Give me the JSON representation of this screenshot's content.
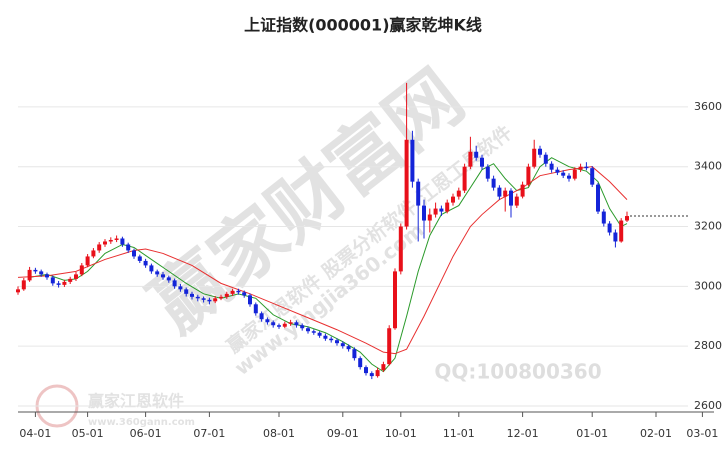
{
  "chart_data": {
    "type": "candlestick",
    "title": "上证指数(000001)赢家乾坤K线",
    "up_color": "#e8101a",
    "down_color": "#1424d8",
    "ohlc": [
      [
        2980,
        3000,
        2972,
        2990
      ],
      [
        2990,
        3028,
        2985,
        3020
      ],
      [
        3020,
        3065,
        3015,
        3055
      ],
      [
        3055,
        3062,
        3042,
        3050
      ],
      [
        3050,
        3056,
        3032,
        3040
      ],
      [
        3040,
        3046,
        3022,
        3030
      ],
      [
        3030,
        3036,
        3002,
        3010
      ],
      [
        3010,
        3018,
        2996,
        3005
      ],
      [
        3005,
        3022,
        2998,
        3015
      ],
      [
        3015,
        3032,
        3008,
        3025
      ],
      [
        3025,
        3048,
        3018,
        3040
      ],
      [
        3040,
        3078,
        3034,
        3070
      ],
      [
        3070,
        3108,
        3064,
        3100
      ],
      [
        3100,
        3128,
        3094,
        3120
      ],
      [
        3120,
        3148,
        3112,
        3140
      ],
      [
        3140,
        3158,
        3132,
        3150
      ],
      [
        3150,
        3164,
        3142,
        3155
      ],
      [
        3155,
        3170,
        3148,
        3160
      ],
      [
        3160,
        3166,
        3132,
        3140
      ],
      [
        3140,
        3146,
        3112,
        3120
      ],
      [
        3120,
        3126,
        3092,
        3100
      ],
      [
        3100,
        3106,
        3078,
        3085
      ],
      [
        3085,
        3092,
        3062,
        3070
      ],
      [
        3070,
        3076,
        3042,
        3050
      ],
      [
        3050,
        3056,
        3032,
        3040
      ],
      [
        3040,
        3048,
        3022,
        3030
      ],
      [
        3030,
        3036,
        3012,
        3020
      ],
      [
        3020,
        3026,
        2992,
        3000
      ],
      [
        3000,
        3008,
        2982,
        2990
      ],
      [
        2990,
        2996,
        2966,
        2975
      ],
      [
        2975,
        2982,
        2956,
        2965
      ],
      [
        2965,
        2972,
        2950,
        2960
      ],
      [
        2960,
        2966,
        2946,
        2955
      ],
      [
        2955,
        2962,
        2940,
        2950
      ],
      [
        2950,
        2968,
        2944,
        2960
      ],
      [
        2960,
        2972,
        2954,
        2965
      ],
      [
        2965,
        2982,
        2958,
        2975
      ],
      [
        2975,
        2992,
        2968,
        2985
      ],
      [
        2985,
        2992,
        2972,
        2980
      ],
      [
        2980,
        2986,
        2962,
        2970
      ],
      [
        2970,
        2976,
        2932,
        2940
      ],
      [
        2940,
        2946,
        2902,
        2910
      ],
      [
        2910,
        2916,
        2882,
        2890
      ],
      [
        2890,
        2896,
        2872,
        2880
      ],
      [
        2880,
        2886,
        2862,
        2870
      ],
      [
        2870,
        2876,
        2858,
        2865
      ],
      [
        2865,
        2882,
        2860,
        2875
      ],
      [
        2875,
        2888,
        2868,
        2880
      ],
      [
        2880,
        2886,
        2862,
        2870
      ],
      [
        2870,
        2876,
        2852,
        2860
      ],
      [
        2860,
        2866,
        2842,
        2850
      ],
      [
        2850,
        2856,
        2838,
        2845
      ],
      [
        2845,
        2850,
        2828,
        2835
      ],
      [
        2835,
        2842,
        2818,
        2825
      ],
      [
        2825,
        2832,
        2812,
        2820
      ],
      [
        2820,
        2826,
        2802,
        2810
      ],
      [
        2810,
        2816,
        2792,
        2800
      ],
      [
        2800,
        2806,
        2782,
        2790
      ],
      [
        2790,
        2796,
        2752,
        2760
      ],
      [
        2760,
        2766,
        2722,
        2730
      ],
      [
        2730,
        2736,
        2702,
        2710
      ],
      [
        2710,
        2716,
        2690,
        2700
      ],
      [
        2700,
        2728,
        2695,
        2720
      ],
      [
        2720,
        2748,
        2714,
        2740
      ],
      [
        2740,
        2870,
        2735,
        2860
      ],
      [
        2860,
        3060,
        2855,
        3050
      ],
      [
        3050,
        3210,
        3040,
        3200
      ],
      [
        3200,
        3680,
        3190,
        3490
      ],
      [
        3490,
        3520,
        3330,
        3350
      ],
      [
        3350,
        3360,
        3150,
        3270
      ],
      [
        3270,
        3290,
        3160,
        3220
      ],
      [
        3220,
        3260,
        3180,
        3240
      ],
      [
        3240,
        3280,
        3230,
        3260
      ],
      [
        3260,
        3270,
        3235,
        3250
      ],
      [
        3250,
        3290,
        3244,
        3280
      ],
      [
        3280,
        3310,
        3270,
        3300
      ],
      [
        3300,
        3330,
        3290,
        3320
      ],
      [
        3320,
        3410,
        3312,
        3400
      ],
      [
        3400,
        3500,
        3392,
        3450
      ],
      [
        3450,
        3470,
        3420,
        3430
      ],
      [
        3430,
        3440,
        3390,
        3400
      ],
      [
        3400,
        3408,
        3350,
        3360
      ],
      [
        3360,
        3370,
        3320,
        3330
      ],
      [
        3330,
        3338,
        3290,
        3300
      ],
      [
        3300,
        3330,
        3250,
        3320
      ],
      [
        3320,
        3328,
        3230,
        3270
      ],
      [
        3270,
        3310,
        3262,
        3300
      ],
      [
        3300,
        3350,
        3294,
        3340
      ],
      [
        3340,
        3410,
        3334,
        3400
      ],
      [
        3400,
        3490,
        3394,
        3460
      ],
      [
        3460,
        3470,
        3430,
        3440
      ],
      [
        3440,
        3448,
        3400,
        3410
      ],
      [
        3410,
        3418,
        3380,
        3390
      ],
      [
        3390,
        3398,
        3372,
        3380
      ],
      [
        3380,
        3388,
        3362,
        3370
      ],
      [
        3370,
        3378,
        3350,
        3360
      ],
      [
        3360,
        3398,
        3354,
        3390
      ],
      [
        3390,
        3410,
        3382,
        3400
      ],
      [
        3400,
        3415,
        3388,
        3395
      ],
      [
        3395,
        3402,
        3332,
        3340
      ],
      [
        3340,
        3346,
        3242,
        3250
      ],
      [
        3250,
        3258,
        3200,
        3210
      ],
      [
        3210,
        3218,
        3170,
        3180
      ],
      [
        3180,
        3190,
        3130,
        3150
      ],
      [
        3150,
        3228,
        3146,
        3220
      ],
      [
        3220,
        3250,
        3215,
        3235
      ]
    ],
    "series": [
      {
        "color": "#2a9a2a",
        "x": [
          2,
          5,
          8,
          10,
          12,
          15,
          18,
          20,
          23,
          26,
          29,
          32,
          35,
          38,
          41,
          44,
          47,
          50,
          53,
          56,
          59,
          61,
          63,
          65,
          67,
          69,
          71,
          73,
          76,
          78,
          80,
          82,
          84,
          86,
          88,
          90,
          92,
          95,
          98,
          100,
          102,
          104,
          105
        ],
        "values": [
          3030,
          3040,
          3020,
          3025,
          3050,
          3110,
          3140,
          3130,
          3090,
          3050,
          3010,
          2975,
          2960,
          2975,
          2960,
          2905,
          2875,
          2865,
          2845,
          2815,
          2780,
          2740,
          2715,
          2760,
          2900,
          3050,
          3170,
          3240,
          3270,
          3330,
          3390,
          3410,
          3360,
          3320,
          3330,
          3400,
          3430,
          3400,
          3385,
          3350,
          3260,
          3200,
          3210
        ]
      },
      {
        "color": "#e83030",
        "x": [
          0,
          5,
          10,
          15,
          20,
          22,
          25,
          30,
          35,
          40,
          45,
          50,
          55,
          60,
          63,
          65,
          67,
          70,
          75,
          78,
          80,
          83,
          87,
          90,
          95,
          99,
          102,
          105
        ],
        "values": [
          3030,
          3035,
          3050,
          3090,
          3120,
          3125,
          3110,
          3070,
          3010,
          2975,
          2935,
          2895,
          2855,
          2810,
          2780,
          2775,
          2790,
          2900,
          3100,
          3200,
          3240,
          3290,
          3330,
          3370,
          3390,
          3400,
          3350,
          3290
        ]
      }
    ],
    "xlim": [
      0,
      120
    ],
    "xticks": [
      {
        "value": 3,
        "label": "04-01"
      },
      {
        "value": 12,
        "label": "05-01"
      },
      {
        "value": 22,
        "label": "06-01"
      },
      {
        "value": 33,
        "label": "07-01"
      },
      {
        "value": 45,
        "label": "08-01"
      },
      {
        "value": 56,
        "label": "09-01"
      },
      {
        "value": 66,
        "label": "10-01"
      },
      {
        "value": 76,
        "label": "11-01"
      },
      {
        "value": 87,
        "label": "12-01"
      },
      {
        "value": 99,
        "label": "01-01"
      },
      {
        "value": 110,
        "label": "02-01"
      },
      {
        "value": 118,
        "label": "03-01"
      }
    ],
    "ylim": [
      2580,
      3770
    ],
    "yticks": [
      2600,
      2800,
      3000,
      3200,
      3400,
      3600
    ],
    "grid": true
  },
  "watermark": {
    "main": "赢家财富网",
    "line": "赢家江恩软件 股票分析软件 江恩工具软件",
    "url": "www.yingjia360.com",
    "qq": "QQ:100800360",
    "logo": "赢家江恩软件",
    "logo_url": "www.360gann.com"
  }
}
